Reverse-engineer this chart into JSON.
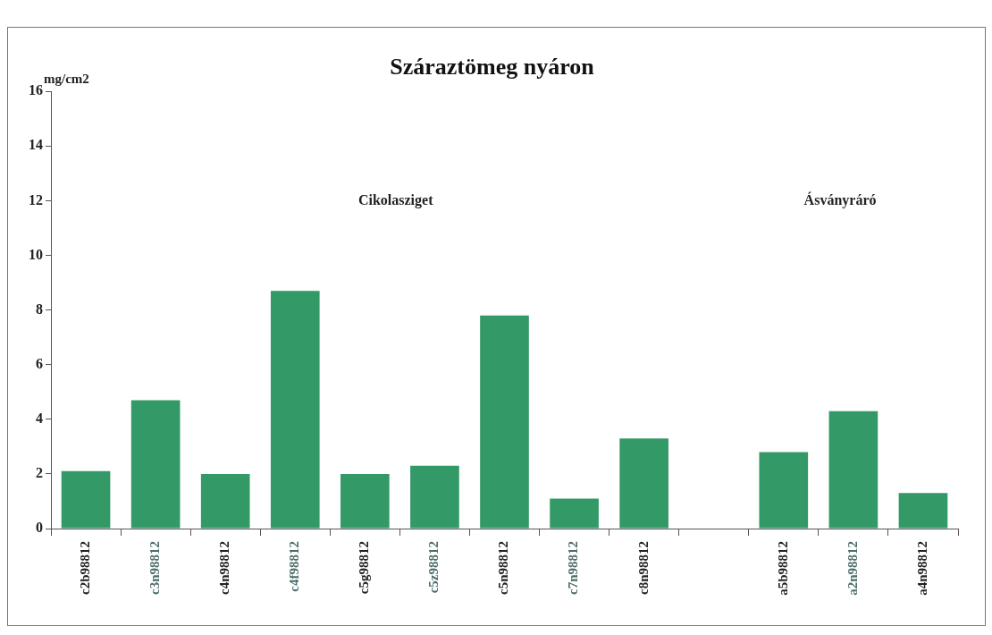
{
  "chart_data": {
    "type": "bar",
    "title": "Száraztömeg nyáron",
    "ylabel": "mg/cm2",
    "categories": [
      "c2b98812",
      "c3n98812",
      "c4n98812",
      "c4f98812",
      "c5g98812",
      "c5z98812",
      "c5n98812",
      "c7n98812",
      "c8n98812",
      null,
      "a5b98812",
      "a2n98812",
      "a4n98812"
    ],
    "values": [
      2.1,
      4.7,
      2.0,
      8.7,
      2.0,
      2.3,
      7.8,
      1.1,
      3.3,
      null,
      2.8,
      4.3,
      1.3
    ],
    "color": "#339966",
    "ylim": [
      0,
      16
    ],
    "yticks": [
      0,
      2,
      4,
      6,
      8,
      10,
      12,
      14,
      16
    ],
    "grid": false,
    "legend": false,
    "annotations": [
      "Cikolasziget",
      "Ásványráró"
    ]
  }
}
